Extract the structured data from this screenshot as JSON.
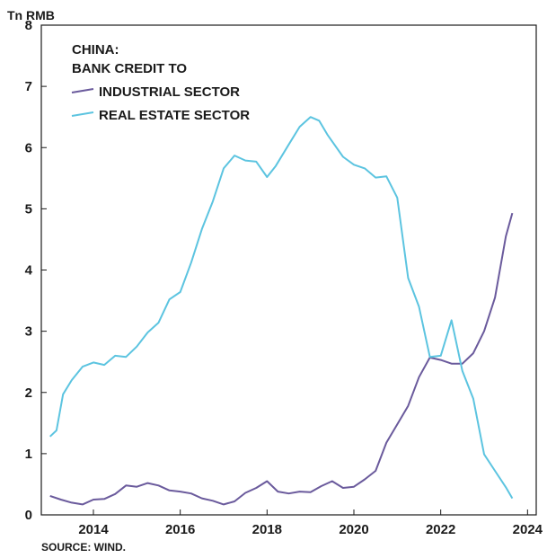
{
  "chart_data": {
    "type": "line",
    "title_lines": [
      "CHINA:",
      "BANK CREDIT TO"
    ],
    "ylabel": "Tn RMB",
    "source": "SOURCE: WIND.",
    "xlim": [
      2012.8,
      2024.2
    ],
    "ylim": [
      0,
      8
    ],
    "x_ticks": [
      2014,
      2016,
      2018,
      2020,
      2022,
      2024
    ],
    "y_ticks": [
      0,
      1,
      2,
      3,
      4,
      5,
      6,
      7,
      8
    ],
    "grid": false,
    "legend_position": "top-left",
    "series": [
      {
        "name": "INDUSTRIAL SECTOR",
        "color": "#6a5a9c",
        "x": [
          2013.0,
          2013.25,
          2013.5,
          2013.75,
          2014.0,
          2014.25,
          2014.5,
          2014.75,
          2015.0,
          2015.25,
          2015.5,
          2015.75,
          2016.0,
          2016.25,
          2016.5,
          2016.75,
          2017.0,
          2017.25,
          2017.5,
          2017.75,
          2018.0,
          2018.25,
          2018.5,
          2018.75,
          2019.0,
          2019.25,
          2019.5,
          2019.75,
          2020.0,
          2020.25,
          2020.5,
          2020.75,
          2021.0,
          2021.25,
          2021.5,
          2021.75,
          2022.0,
          2022.25,
          2022.5,
          2022.75,
          2023.0,
          2023.25,
          2023.5,
          2023.65
        ],
        "values": [
          0.31,
          0.25,
          0.2,
          0.17,
          0.25,
          0.26,
          0.34,
          0.48,
          0.46,
          0.52,
          0.48,
          0.4,
          0.38,
          0.35,
          0.27,
          0.23,
          0.17,
          0.22,
          0.36,
          0.44,
          0.55,
          0.38,
          0.35,
          0.38,
          0.37,
          0.47,
          0.55,
          0.44,
          0.46,
          0.58,
          0.72,
          1.18,
          1.48,
          1.78,
          2.25,
          2.57,
          2.53,
          2.47,
          2.47,
          2.64,
          3.0,
          3.55,
          4.55,
          4.93
        ]
      },
      {
        "name": "REAL ESTATE SECTOR",
        "color": "#5cc4e0",
        "x": [
          2013.0,
          2013.15,
          2013.3,
          2013.5,
          2013.75,
          2014.0,
          2014.25,
          2014.5,
          2014.75,
          2015.0,
          2015.25,
          2015.5,
          2015.75,
          2016.0,
          2016.25,
          2016.5,
          2016.75,
          2017.0,
          2017.25,
          2017.5,
          2017.75,
          2018.0,
          2018.2,
          2018.5,
          2018.75,
          2019.0,
          2019.2,
          2019.4,
          2019.75,
          2020.0,
          2020.25,
          2020.5,
          2020.75,
          2021.0,
          2021.25,
          2021.5,
          2021.75,
          2022.0,
          2022.25,
          2022.5,
          2022.75,
          2023.0,
          2023.25,
          2023.5,
          2023.65
        ],
        "values": [
          1.28,
          1.38,
          1.97,
          2.2,
          2.42,
          2.49,
          2.45,
          2.6,
          2.58,
          2.75,
          2.98,
          3.14,
          3.52,
          3.64,
          4.12,
          4.67,
          5.12,
          5.66,
          5.87,
          5.79,
          5.77,
          5.52,
          5.7,
          6.05,
          6.34,
          6.5,
          6.44,
          6.2,
          5.85,
          5.72,
          5.66,
          5.51,
          5.53,
          5.18,
          3.87,
          3.4,
          2.58,
          2.6,
          3.18,
          2.35,
          1.9,
          0.99,
          0.72,
          0.45,
          0.27
        ]
      }
    ]
  }
}
